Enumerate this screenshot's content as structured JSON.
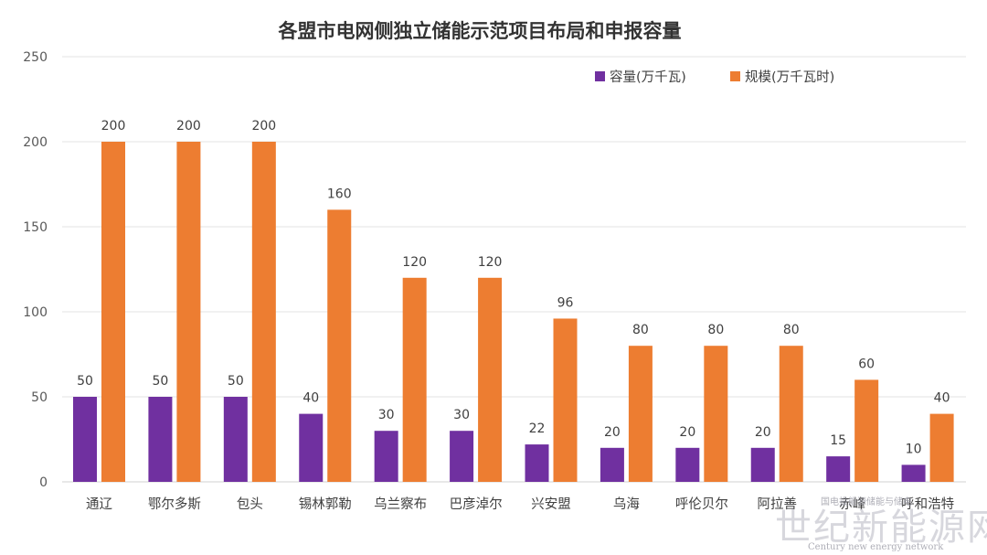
{
  "chart_data": {
    "type": "bar",
    "title": "各盟市电网侧独立储能示范项目布局和申报容量",
    "categories": [
      "通辽",
      "鄂尔多斯",
      "包头",
      "锡林郭勒",
      "乌兰察布",
      "巴彦淖尔",
      "兴安盟",
      "乌海",
      "呼伦贝尔",
      "阿拉善",
      "赤峰",
      "呼和浩特"
    ],
    "series": [
      {
        "name": "容量(万千瓦)",
        "color": "#7030a0",
        "values": [
          50,
          50,
          50,
          40,
          30,
          30,
          22,
          20,
          20,
          20,
          15,
          10
        ]
      },
      {
        "name": "规模(万千瓦时)",
        "color": "#ed7d31",
        "values": [
          200,
          200,
          200,
          160,
          120,
          120,
          96,
          80,
          80,
          80,
          60,
          40
        ]
      }
    ],
    "ylim": [
      0,
      250
    ],
    "yticks": [
      0,
      50,
      100,
      150,
      200,
      250
    ],
    "xlabel": "",
    "ylabel": "",
    "grid": true,
    "legend_position": "top-right"
  },
  "watermark": {
    "main": "世纪新能源网",
    "sub": "Century new energy network",
    "small": "国电投能源储能与储电"
  }
}
